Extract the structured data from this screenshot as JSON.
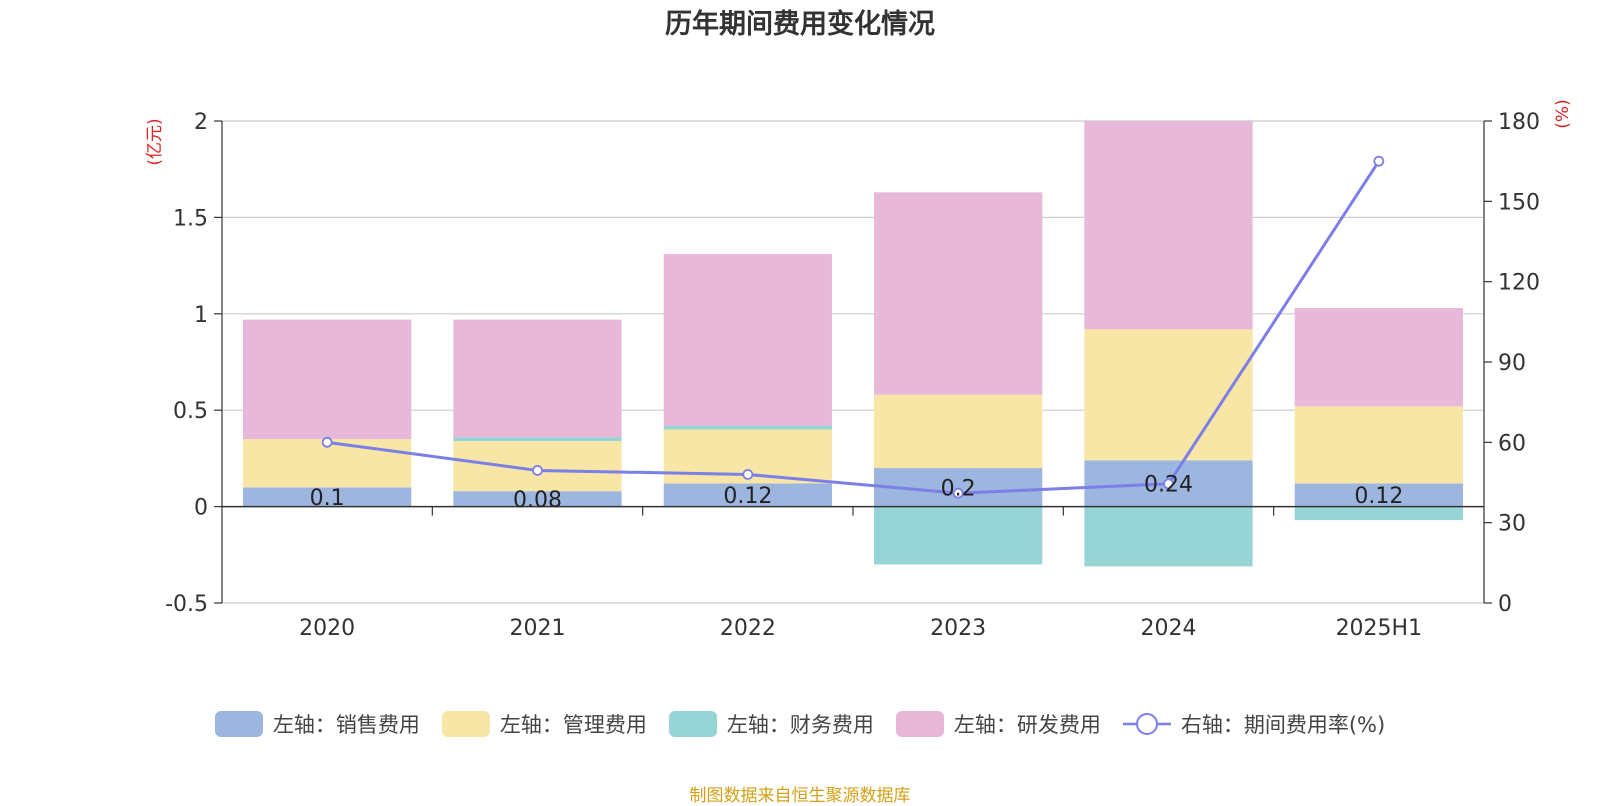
{
  "chart_data": {
    "title": "历年期间费用变化情况",
    "type": "bar",
    "stacked": true,
    "categories": [
      "2020",
      "2021",
      "2022",
      "2023",
      "2024",
      "2025H1"
    ],
    "left_axis": {
      "unit": "(亿元)",
      "ylim": [
        -0.5,
        2
      ],
      "ticks": [
        "2",
        "1.5",
        "1",
        "0.5",
        "0",
        "-0.5"
      ]
    },
    "right_axis": {
      "unit": "(%)",
      "ylim": [
        0,
        180
      ],
      "ticks": [
        "180",
        "150",
        "120",
        "90",
        "60",
        "30",
        "0"
      ]
    },
    "series": [
      {
        "name": "左轴：销售费用",
        "type": "bar",
        "axis": "left",
        "color": "#9db6e0",
        "values": [
          0.1,
          0.08,
          0.12,
          0.2,
          0.24,
          0.12
        ],
        "labels": [
          "0.1",
          "0.08",
          "0.12",
          "0.2",
          "0.24",
          "0.12"
        ]
      },
      {
        "name": "左轴：管理费用",
        "type": "bar",
        "axis": "left",
        "color": "#f8e6a6",
        "values": [
          0.25,
          0.26,
          0.28,
          0.38,
          0.68,
          0.4
        ]
      },
      {
        "name": "左轴：财务费用",
        "type": "bar",
        "axis": "left",
        "color": "#97d4d6",
        "values": [
          0.0,
          0.02,
          0.02,
          -0.3,
          -0.31,
          -0.07
        ]
      },
      {
        "name": "左轴：研发费用",
        "type": "bar",
        "axis": "left",
        "color": "#e8b8d9",
        "values": [
          0.62,
          0.61,
          0.89,
          1.05,
          1.08,
          0.51
        ]
      },
      {
        "name": "右轴：期间费用率(%)",
        "type": "line",
        "axis": "right",
        "color": "#7b7fe8",
        "values": [
          60,
          49.5,
          48,
          41,
          44.5,
          165
        ]
      }
    ],
    "grid": true,
    "legend_position": "bottom"
  },
  "footer": {
    "source": "制图数据来自恒生聚源数据库"
  }
}
